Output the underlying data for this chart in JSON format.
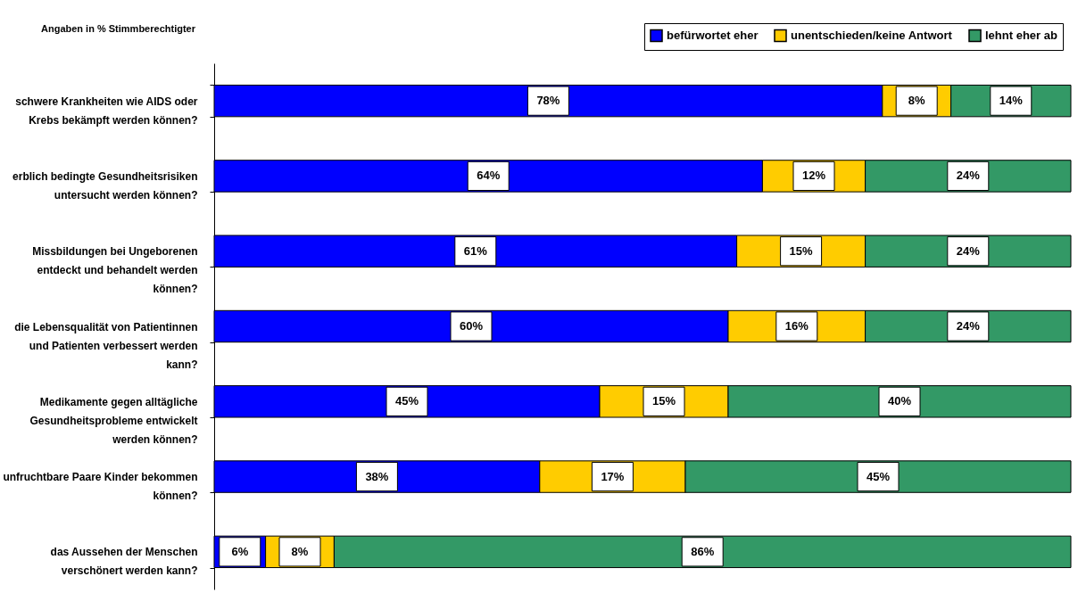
{
  "chart_data": {
    "type": "bar",
    "orientation": "horizontal",
    "stacked": true,
    "annotations": [
      "Angaben in % Stimmberechtigter"
    ],
    "categories": [
      "schwere Krankheiten wie AIDS oder Krebs bekämpft werden können?",
      "erblich bedingte Gesundheitsrisiken untersucht werden können?",
      "Missbildungen bei Ungeborenen entdeckt und behandelt werden können?",
      "die Lebensqualität von Patientinnen und Patienten verbessert werden kann?",
      "Medikamente gegen alltägliche Gesundheitsprobleme entwickelt werden können?",
      "unfruchtbare Paare Kinder bekommen können?",
      "das Aussehen der Menschen verschönert werden kann?"
    ],
    "series": [
      {
        "name": "befürwortet eher",
        "color": "#0000ff",
        "values": [
          78,
          64,
          61,
          60,
          45,
          38,
          6
        ],
        "value_labels": [
          "78%",
          "64%",
          "61%",
          "60%",
          "45%",
          "38%",
          "6%"
        ]
      },
      {
        "name": "unentschieden/keine Antwort",
        "color": "#ffcc00",
        "values": [
          8,
          12,
          15,
          16,
          15,
          17,
          8
        ],
        "value_labels": [
          "8%",
          "12%",
          "15%",
          "16%",
          "15%",
          "17%",
          "8%"
        ]
      },
      {
        "name": "lehnt eher ab",
        "color": "#339966",
        "values": [
          14,
          24,
          24,
          24,
          40,
          45,
          86
        ],
        "value_labels": [
          "14%",
          "24%",
          "24%",
          "24%",
          "40%",
          "45%",
          "86%"
        ]
      }
    ],
    "legend": "top right",
    "grid": false
  }
}
